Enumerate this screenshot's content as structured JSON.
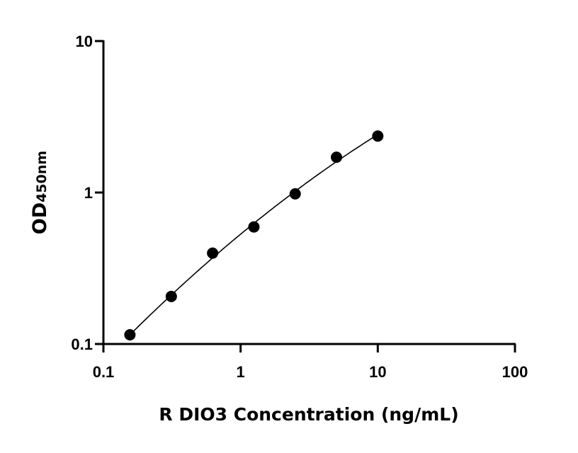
{
  "chart_data": {
    "type": "scatter",
    "title": "",
    "xlabel": "R DIO3 Concentration (ng/mL)",
    "ylabel_main": "OD",
    "ylabel_sub": "450nm",
    "xscale": "log",
    "yscale": "log",
    "xlim": [
      0.1,
      100
    ],
    "ylim": [
      0.1,
      10
    ],
    "x_ticks": [
      "0.1",
      "1",
      "10",
      "100"
    ],
    "y_ticks": [
      "0.1",
      "1",
      "10"
    ],
    "grid": false,
    "fit_curve": true,
    "series": [
      {
        "x": [
          0.156,
          0.3125,
          0.625,
          1.25,
          2.5,
          5,
          10
        ],
        "y": [
          0.115,
          0.206,
          0.398,
          0.593,
          0.98,
          1.71,
          2.36
        ]
      }
    ],
    "colors": {
      "marker": "#000000",
      "line": "#000000"
    }
  }
}
